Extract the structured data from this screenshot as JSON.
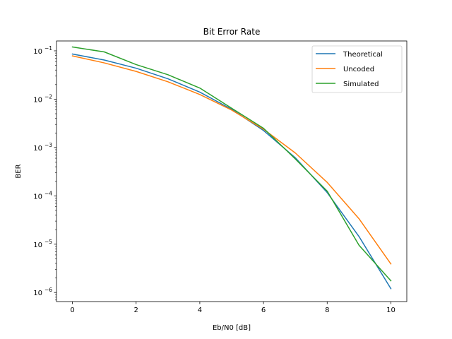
{
  "chart_data": {
    "type": "line",
    "title": "Bit Error Rate",
    "xlabel": "Eb/N0 [dB]",
    "ylabel": "BER",
    "yscale": "log",
    "xlim": [
      -0.5,
      10.5
    ],
    "ylim": [
      6.5e-07,
      0.16
    ],
    "xticks": [
      0,
      2,
      4,
      6,
      8,
      10
    ],
    "yticks": [
      {
        "value": 1e-06,
        "label": "10",
        "exp": "−6"
      },
      {
        "value": 1e-05,
        "label": "10",
        "exp": "−5"
      },
      {
        "value": 0.0001,
        "label": "10",
        "exp": "−4"
      },
      {
        "value": 0.001,
        "label": "10",
        "exp": "−3"
      },
      {
        "value": 0.01,
        "label": "10",
        "exp": "−2"
      },
      {
        "value": 0.1,
        "label": "10",
        "exp": "−1"
      }
    ],
    "grid": false,
    "legend_position": "top-right",
    "x": [
      0,
      1,
      2,
      3,
      4,
      5,
      6,
      7,
      8,
      9,
      10
    ],
    "series": [
      {
        "name": "Theoretical",
        "color": "#1f77b4",
        "values": [
          0.0858,
          0.0645,
          0.0437,
          0.0264,
          0.014,
          0.00617,
          0.00225,
          0.000613,
          0.000117,
          1.44e-05,
          1.2e-06
        ]
      },
      {
        "name": "Uncoded",
        "color": "#ff7f0e",
        "values": [
          0.0786,
          0.0563,
          0.0375,
          0.0229,
          0.0125,
          0.00595,
          0.00239,
          0.00077,
          0.00019,
          3.36e-05,
          3.9e-06
        ]
      },
      {
        "name": "Simulated",
        "color": "#2ca02c",
        "values": [
          0.12,
          0.095,
          0.052,
          0.032,
          0.017,
          0.0065,
          0.0025,
          0.00058,
          0.000125,
          9.5e-06,
          1.75e-06
        ]
      }
    ]
  }
}
